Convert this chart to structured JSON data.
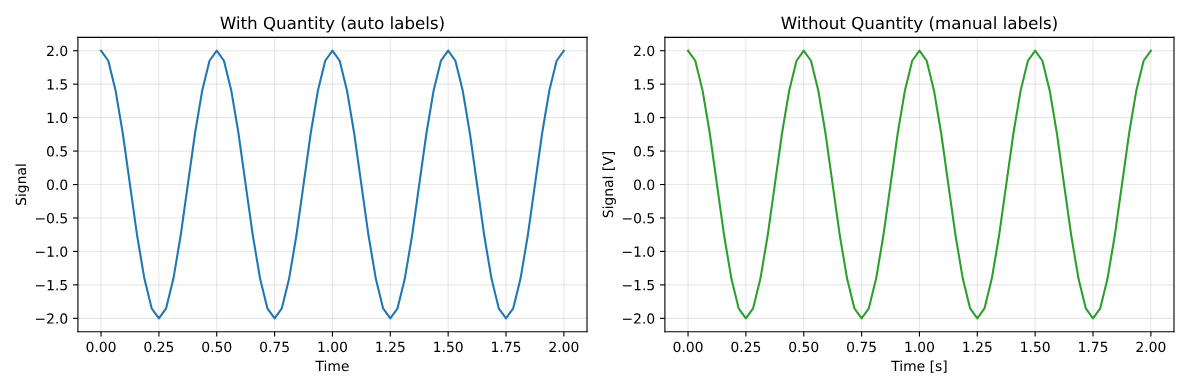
{
  "chart_data": [
    {
      "type": "line",
      "title": "With Quantity (auto labels)",
      "xlabel": "Time",
      "ylabel": "Signal",
      "grid": true,
      "x": [
        0,
        0.03125,
        0.0625,
        0.09375,
        0.125,
        0.15625,
        0.1875,
        0.21875,
        0.25,
        0.28125,
        0.3125,
        0.34375,
        0.375,
        0.40625,
        0.4375,
        0.46875,
        0.5,
        0.53125,
        0.5625,
        0.59375,
        0.625,
        0.65625,
        0.6875,
        0.71875,
        0.75,
        0.78125,
        0.8125,
        0.84375,
        0.875,
        0.90625,
        0.9375,
        0.96875,
        1,
        1.03125,
        1.0625,
        1.09375,
        1.125,
        1.15625,
        1.1875,
        1.21875,
        1.25,
        1.28125,
        1.3125,
        1.34375,
        1.375,
        1.40625,
        1.4375,
        1.46875,
        1.5,
        1.53125,
        1.5625,
        1.59375,
        1.625,
        1.65625,
        1.6875,
        1.71875,
        1.75,
        1.78125,
        1.8125,
        1.84375,
        1.875,
        1.90625,
        1.9375,
        1.96875,
        2
      ],
      "series": [
        {
          "color": "#1f77b4",
          "values": [
            2.0,
            1.85,
            1.41,
            0.77,
            0.0,
            -0.77,
            -1.41,
            -1.85,
            -2.0,
            -1.85,
            -1.41,
            -0.77,
            0.0,
            0.77,
            1.41,
            1.85,
            2.0,
            1.85,
            1.41,
            0.77,
            0.0,
            -0.77,
            -1.41,
            -1.85,
            -2.0,
            -1.85,
            -1.41,
            -0.77,
            0.0,
            0.77,
            1.41,
            1.85,
            2.0,
            1.85,
            1.41,
            0.77,
            0.0,
            -0.77,
            -1.41,
            -1.85,
            -2.0,
            -1.85,
            -1.41,
            -0.77,
            0.0,
            0.77,
            1.41,
            1.85,
            2.0,
            1.85,
            1.41,
            0.77,
            0.0,
            -0.77,
            -1.41,
            -1.85,
            -2.0,
            -1.85,
            -1.41,
            -0.77,
            0.0,
            0.77,
            1.41,
            1.85,
            2.0
          ]
        }
      ],
      "xlim": [
        -0.1,
        2.1
      ],
      "ylim": [
        -2.2,
        2.2
      ],
      "xticks": [
        {
          "value": 0,
          "label": "0.00"
        },
        {
          "value": 0.25,
          "label": "0.25"
        },
        {
          "value": 0.5,
          "label": "0.50"
        },
        {
          "value": 0.75,
          "label": "0.75"
        },
        {
          "value": 1,
          "label": "1.00"
        },
        {
          "value": 1.25,
          "label": "1.25"
        },
        {
          "value": 1.5,
          "label": "1.50"
        },
        {
          "value": 1.75,
          "label": "1.75"
        },
        {
          "value": 2,
          "label": "2.00"
        }
      ],
      "yticks": [
        {
          "value": -2,
          "label": "−2.0"
        },
        {
          "value": -1.5,
          "label": "−1.5"
        },
        {
          "value": -1,
          "label": "−1.0"
        },
        {
          "value": -0.5,
          "label": "−0.5"
        },
        {
          "value": 0,
          "label": "0.0"
        },
        {
          "value": 0.5,
          "label": "0.5"
        },
        {
          "value": 1,
          "label": "1.0"
        },
        {
          "value": 1.5,
          "label": "1.5"
        },
        {
          "value": 2,
          "label": "2.0"
        }
      ]
    },
    {
      "type": "line",
      "title": "Without Quantity (manual labels)",
      "xlabel": "Time [s]",
      "ylabel": "Signal [V]",
      "grid": true,
      "x": [
        0,
        0.03125,
        0.0625,
        0.09375,
        0.125,
        0.15625,
        0.1875,
        0.21875,
        0.25,
        0.28125,
        0.3125,
        0.34375,
        0.375,
        0.40625,
        0.4375,
        0.46875,
        0.5,
        0.53125,
        0.5625,
        0.59375,
        0.625,
        0.65625,
        0.6875,
        0.71875,
        0.75,
        0.78125,
        0.8125,
        0.84375,
        0.875,
        0.90625,
        0.9375,
        0.96875,
        1,
        1.03125,
        1.0625,
        1.09375,
        1.125,
        1.15625,
        1.1875,
        1.21875,
        1.25,
        1.28125,
        1.3125,
        1.34375,
        1.375,
        1.40625,
        1.4375,
        1.46875,
        1.5,
        1.53125,
        1.5625,
        1.59375,
        1.625,
        1.65625,
        1.6875,
        1.71875,
        1.75,
        1.78125,
        1.8125,
        1.84375,
        1.875,
        1.90625,
        1.9375,
        1.96875,
        2
      ],
      "series": [
        {
          "color": "#2ca02c",
          "values": [
            2.0,
            1.85,
            1.41,
            0.77,
            0.0,
            -0.77,
            -1.41,
            -1.85,
            -2.0,
            -1.85,
            -1.41,
            -0.77,
            0.0,
            0.77,
            1.41,
            1.85,
            2.0,
            1.85,
            1.41,
            0.77,
            0.0,
            -0.77,
            -1.41,
            -1.85,
            -2.0,
            -1.85,
            -1.41,
            -0.77,
            0.0,
            0.77,
            1.41,
            1.85,
            2.0,
            1.85,
            1.41,
            0.77,
            0.0,
            -0.77,
            -1.41,
            -1.85,
            -2.0,
            -1.85,
            -1.41,
            -0.77,
            0.0,
            0.77,
            1.41,
            1.85,
            2.0,
            1.85,
            1.41,
            0.77,
            0.0,
            -0.77,
            -1.41,
            -1.85,
            -2.0,
            -1.85,
            -1.41,
            -0.77,
            0.0,
            0.77,
            1.41,
            1.85,
            2.0
          ]
        }
      ],
      "xlim": [
        -0.1,
        2.1
      ],
      "ylim": [
        -2.2,
        2.2
      ],
      "xticks": [
        {
          "value": 0,
          "label": "0.00"
        },
        {
          "value": 0.25,
          "label": "0.25"
        },
        {
          "value": 0.5,
          "label": "0.50"
        },
        {
          "value": 0.75,
          "label": "0.75"
        },
        {
          "value": 1,
          "label": "1.00"
        },
        {
          "value": 1.25,
          "label": "1.25"
        },
        {
          "value": 1.5,
          "label": "1.50"
        },
        {
          "value": 1.75,
          "label": "1.75"
        },
        {
          "value": 2,
          "label": "2.00"
        }
      ],
      "yticks": [
        {
          "value": -2,
          "label": "−2.0"
        },
        {
          "value": -1.5,
          "label": "−1.5"
        },
        {
          "value": -1,
          "label": "−1.0"
        },
        {
          "value": -0.5,
          "label": "−0.5"
        },
        {
          "value": 0,
          "label": "0.0"
        },
        {
          "value": 0.5,
          "label": "0.5"
        },
        {
          "value": 1,
          "label": "1.0"
        },
        {
          "value": 1.5,
          "label": "1.5"
        },
        {
          "value": 2,
          "label": "2.0"
        }
      ]
    }
  ]
}
